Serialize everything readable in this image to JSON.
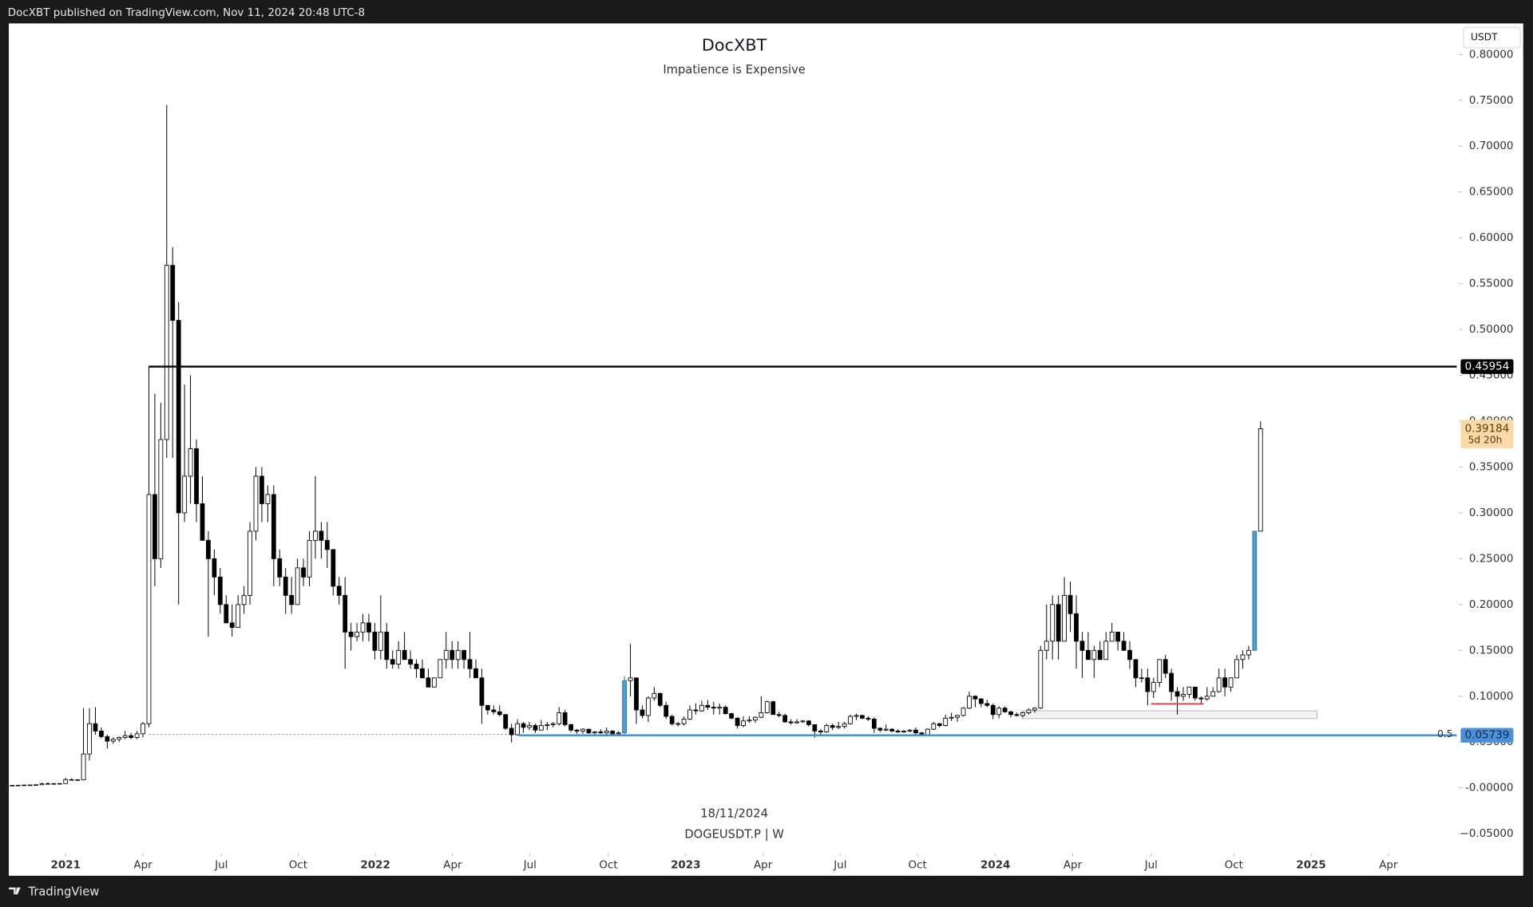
{
  "header": {
    "byline": "DocXBT published on TradingView.com, Nov 11, 2024 20:48 UTC-8"
  },
  "footer": {
    "brand": "TradingView"
  },
  "chart_data": {
    "type": "candlestick",
    "title": "DocXBT",
    "subtitle": "Impatience is Expensive",
    "currency": "USDT",
    "date_label": "18/11/2024",
    "symbol": "DOGEUSDT.P | W",
    "up_color": "#ffffff",
    "down_color": "#000000",
    "highlight": {
      "candles": [
        103,
        209
      ],
      "color": "#4b9fd5"
    },
    "grid": false,
    "ohlc": [
      [
        0.0026,
        0.0028,
        0.0025,
        0.0027
      ],
      [
        0.0027,
        0.003,
        0.0026,
        0.0029
      ],
      [
        0.0029,
        0.0032,
        0.0028,
        0.0031
      ],
      [
        0.0031,
        0.0034,
        0.003,
        0.0032
      ],
      [
        0.0032,
        0.0036,
        0.0031,
        0.0034
      ],
      [
        0.0034,
        0.0058,
        0.0033,
        0.0045
      ],
      [
        0.0045,
        0.0062,
        0.0042,
        0.0046
      ],
      [
        0.0046,
        0.0052,
        0.0042,
        0.0045
      ],
      [
        0.0045,
        0.005,
        0.0043,
        0.0047
      ],
      [
        0.0047,
        0.011,
        0.0045,
        0.009
      ],
      [
        0.009,
        0.0105,
        0.008,
        0.0088
      ],
      [
        0.0088,
        0.0095,
        0.0078,
        0.0087
      ],
      [
        0.0087,
        0.087,
        0.0085,
        0.037
      ],
      [
        0.037,
        0.087,
        0.03,
        0.07
      ],
      [
        0.07,
        0.088,
        0.058,
        0.062
      ],
      [
        0.062,
        0.066,
        0.054,
        0.056
      ],
      [
        0.056,
        0.058,
        0.043,
        0.051
      ],
      [
        0.051,
        0.055,
        0.048,
        0.053
      ],
      [
        0.053,
        0.056,
        0.05,
        0.055
      ],
      [
        0.055,
        0.062,
        0.053,
        0.057
      ],
      [
        0.057,
        0.06,
        0.053,
        0.055
      ],
      [
        0.055,
        0.062,
        0.053,
        0.059
      ],
      [
        0.059,
        0.072,
        0.055,
        0.07
      ],
      [
        0.07,
        0.46,
        0.066,
        0.32
      ],
      [
        0.32,
        0.43,
        0.22,
        0.25
      ],
      [
        0.25,
        0.42,
        0.24,
        0.38
      ],
      [
        0.38,
        0.745,
        0.36,
        0.57
      ],
      [
        0.57,
        0.59,
        0.36,
        0.51
      ],
      [
        0.51,
        0.53,
        0.2,
        0.3
      ],
      [
        0.3,
        0.44,
        0.29,
        0.34
      ],
      [
        0.34,
        0.45,
        0.31,
        0.37
      ],
      [
        0.37,
        0.38,
        0.29,
        0.31
      ],
      [
        0.31,
        0.34,
        0.27,
        0.27
      ],
      [
        0.27,
        0.28,
        0.165,
        0.25
      ],
      [
        0.25,
        0.26,
        0.21,
        0.23
      ],
      [
        0.23,
        0.24,
        0.19,
        0.2
      ],
      [
        0.2,
        0.21,
        0.18,
        0.18
      ],
      [
        0.18,
        0.2,
        0.165,
        0.175
      ],
      [
        0.175,
        0.21,
        0.175,
        0.2
      ],
      [
        0.2,
        0.22,
        0.19,
        0.21
      ],
      [
        0.21,
        0.29,
        0.2,
        0.28
      ],
      [
        0.28,
        0.35,
        0.27,
        0.34
      ],
      [
        0.34,
        0.35,
        0.29,
        0.31
      ],
      [
        0.31,
        0.33,
        0.29,
        0.32
      ],
      [
        0.32,
        0.33,
        0.22,
        0.25
      ],
      [
        0.25,
        0.26,
        0.22,
        0.23
      ],
      [
        0.23,
        0.24,
        0.19,
        0.21
      ],
      [
        0.21,
        0.23,
        0.19,
        0.2
      ],
      [
        0.2,
        0.25,
        0.2,
        0.24
      ],
      [
        0.24,
        0.25,
        0.22,
        0.23
      ],
      [
        0.23,
        0.28,
        0.22,
        0.27
      ],
      [
        0.27,
        0.34,
        0.25,
        0.28
      ],
      [
        0.28,
        0.29,
        0.25,
        0.27
      ],
      [
        0.27,
        0.29,
        0.24,
        0.26
      ],
      [
        0.26,
        0.26,
        0.21,
        0.22
      ],
      [
        0.22,
        0.23,
        0.2,
        0.21
      ],
      [
        0.21,
        0.23,
        0.13,
        0.17
      ],
      [
        0.17,
        0.18,
        0.15,
        0.165
      ],
      [
        0.165,
        0.18,
        0.16,
        0.17
      ],
      [
        0.17,
        0.19,
        0.16,
        0.18
      ],
      [
        0.18,
        0.19,
        0.16,
        0.17
      ],
      [
        0.17,
        0.18,
        0.14,
        0.15
      ],
      [
        0.15,
        0.21,
        0.14,
        0.17
      ],
      [
        0.17,
        0.18,
        0.13,
        0.14
      ],
      [
        0.14,
        0.15,
        0.13,
        0.135
      ],
      [
        0.135,
        0.16,
        0.13,
        0.15
      ],
      [
        0.15,
        0.17,
        0.14,
        0.14
      ],
      [
        0.14,
        0.15,
        0.13,
        0.135
      ],
      [
        0.135,
        0.14,
        0.12,
        0.13
      ],
      [
        0.13,
        0.14,
        0.12,
        0.12
      ],
      [
        0.12,
        0.13,
        0.11,
        0.11
      ],
      [
        0.11,
        0.12,
        0.11,
        0.12
      ],
      [
        0.12,
        0.14,
        0.12,
        0.14
      ],
      [
        0.14,
        0.17,
        0.13,
        0.15
      ],
      [
        0.15,
        0.16,
        0.13,
        0.14
      ],
      [
        0.14,
        0.16,
        0.13,
        0.15
      ],
      [
        0.15,
        0.15,
        0.13,
        0.14
      ],
      [
        0.14,
        0.17,
        0.12,
        0.13
      ],
      [
        0.13,
        0.14,
        0.12,
        0.12
      ],
      [
        0.12,
        0.13,
        0.07,
        0.09
      ],
      [
        0.09,
        0.09,
        0.08,
        0.085
      ],
      [
        0.085,
        0.09,
        0.08,
        0.083
      ],
      [
        0.083,
        0.09,
        0.078,
        0.08
      ],
      [
        0.08,
        0.08,
        0.063,
        0.065
      ],
      [
        0.065,
        0.07,
        0.0495,
        0.058
      ],
      [
        0.058,
        0.075,
        0.057,
        0.07
      ],
      [
        0.07,
        0.072,
        0.06,
        0.066
      ],
      [
        0.066,
        0.072,
        0.063,
        0.068
      ],
      [
        0.068,
        0.07,
        0.06,
        0.063
      ],
      [
        0.063,
        0.074,
        0.063,
        0.068
      ],
      [
        0.068,
        0.072,
        0.063,
        0.069
      ],
      [
        0.069,
        0.072,
        0.066,
        0.07
      ],
      [
        0.07,
        0.088,
        0.068,
        0.082
      ],
      [
        0.082,
        0.085,
        0.067,
        0.069
      ],
      [
        0.069,
        0.07,
        0.061,
        0.063
      ],
      [
        0.063,
        0.064,
        0.059,
        0.062
      ],
      [
        0.062,
        0.065,
        0.059,
        0.064
      ],
      [
        0.064,
        0.064,
        0.059,
        0.06
      ],
      [
        0.06,
        0.062,
        0.057,
        0.061
      ],
      [
        0.061,
        0.064,
        0.059,
        0.06
      ],
      [
        0.06,
        0.066,
        0.058,
        0.062
      ],
      [
        0.062,
        0.063,
        0.057,
        0.059
      ],
      [
        0.059,
        0.062,
        0.058,
        0.06
      ],
      [
        0.06,
        0.122,
        0.058,
        0.117
      ],
      [
        0.117,
        0.157,
        0.1,
        0.12
      ],
      [
        0.12,
        0.12,
        0.07,
        0.085
      ],
      [
        0.085,
        0.09,
        0.076,
        0.079
      ],
      [
        0.079,
        0.1,
        0.072,
        0.098
      ],
      [
        0.098,
        0.11,
        0.095,
        0.103
      ],
      [
        0.103,
        0.104,
        0.088,
        0.09
      ],
      [
        0.09,
        0.094,
        0.075,
        0.078
      ],
      [
        0.078,
        0.08,
        0.068,
        0.07
      ],
      [
        0.07,
        0.072,
        0.067,
        0.07
      ],
      [
        0.07,
        0.078,
        0.068,
        0.075
      ],
      [
        0.075,
        0.09,
        0.074,
        0.085
      ],
      [
        0.085,
        0.092,
        0.08,
        0.084
      ],
      [
        0.084,
        0.095,
        0.083,
        0.09
      ],
      [
        0.09,
        0.096,
        0.085,
        0.088
      ],
      [
        0.088,
        0.094,
        0.08,
        0.087
      ],
      [
        0.087,
        0.092,
        0.08,
        0.088
      ],
      [
        0.088,
        0.09,
        0.08,
        0.081
      ],
      [
        0.081,
        0.082,
        0.075,
        0.076
      ],
      [
        0.076,
        0.077,
        0.065,
        0.068
      ],
      [
        0.068,
        0.078,
        0.066,
        0.073
      ],
      [
        0.073,
        0.078,
        0.071,
        0.074
      ],
      [
        0.074,
        0.078,
        0.071,
        0.077
      ],
      [
        0.077,
        0.1,
        0.076,
        0.082
      ],
      [
        0.082,
        0.095,
        0.081,
        0.094
      ],
      [
        0.094,
        0.095,
        0.08,
        0.08
      ],
      [
        0.08,
        0.083,
        0.077,
        0.079
      ],
      [
        0.079,
        0.081,
        0.071,
        0.072
      ],
      [
        0.072,
        0.075,
        0.069,
        0.071
      ],
      [
        0.071,
        0.075,
        0.07,
        0.072
      ],
      [
        0.072,
        0.074,
        0.071,
        0.073
      ],
      [
        0.073,
        0.074,
        0.067,
        0.069
      ],
      [
        0.069,
        0.069,
        0.055,
        0.062
      ],
      [
        0.062,
        0.064,
        0.058,
        0.061
      ],
      [
        0.061,
        0.07,
        0.06,
        0.068
      ],
      [
        0.068,
        0.07,
        0.063,
        0.066
      ],
      [
        0.066,
        0.072,
        0.064,
        0.067
      ],
      [
        0.067,
        0.072,
        0.065,
        0.07
      ],
      [
        0.07,
        0.08,
        0.069,
        0.078
      ],
      [
        0.078,
        0.081,
        0.074,
        0.079
      ],
      [
        0.079,
        0.08,
        0.075,
        0.076
      ],
      [
        0.076,
        0.078,
        0.073,
        0.075
      ],
      [
        0.075,
        0.077,
        0.06,
        0.065
      ],
      [
        0.065,
        0.066,
        0.061,
        0.063
      ],
      [
        0.063,
        0.069,
        0.062,
        0.064
      ],
      [
        0.064,
        0.065,
        0.061,
        0.062
      ],
      [
        0.062,
        0.064,
        0.06,
        0.061
      ],
      [
        0.061,
        0.063,
        0.06,
        0.062
      ],
      [
        0.062,
        0.064,
        0.061,
        0.063
      ],
      [
        0.063,
        0.066,
        0.058,
        0.06
      ],
      [
        0.06,
        0.061,
        0.057,
        0.058
      ],
      [
        0.058,
        0.065,
        0.058,
        0.064
      ],
      [
        0.064,
        0.072,
        0.063,
        0.07
      ],
      [
        0.07,
        0.071,
        0.066,
        0.068
      ],
      [
        0.068,
        0.08,
        0.067,
        0.076
      ],
      [
        0.076,
        0.082,
        0.073,
        0.077
      ],
      [
        0.077,
        0.08,
        0.072,
        0.079
      ],
      [
        0.079,
        0.088,
        0.078,
        0.087
      ],
      [
        0.087,
        0.105,
        0.086,
        0.1
      ],
      [
        0.1,
        0.101,
        0.088,
        0.097
      ],
      [
        0.097,
        0.098,
        0.088,
        0.092
      ],
      [
        0.092,
        0.096,
        0.088,
        0.09
      ],
      [
        0.09,
        0.092,
        0.075,
        0.08
      ],
      [
        0.08,
        0.089,
        0.076,
        0.087
      ],
      [
        0.087,
        0.089,
        0.082,
        0.083
      ],
      [
        0.083,
        0.084,
        0.077,
        0.08
      ],
      [
        0.08,
        0.082,
        0.078,
        0.079
      ],
      [
        0.079,
        0.083,
        0.077,
        0.082
      ],
      [
        0.082,
        0.087,
        0.08,
        0.085
      ],
      [
        0.085,
        0.088,
        0.082,
        0.087
      ],
      [
        0.087,
        0.155,
        0.086,
        0.15
      ],
      [
        0.15,
        0.2,
        0.14,
        0.16
      ],
      [
        0.16,
        0.21,
        0.14,
        0.2
      ],
      [
        0.2,
        0.21,
        0.14,
        0.16
      ],
      [
        0.16,
        0.23,
        0.16,
        0.21
      ],
      [
        0.21,
        0.225,
        0.17,
        0.19
      ],
      [
        0.19,
        0.21,
        0.13,
        0.16
      ],
      [
        0.16,
        0.17,
        0.12,
        0.15
      ],
      [
        0.15,
        0.17,
        0.14,
        0.14
      ],
      [
        0.14,
        0.155,
        0.12,
        0.15
      ],
      [
        0.15,
        0.16,
        0.14,
        0.14
      ],
      [
        0.14,
        0.17,
        0.14,
        0.16
      ],
      [
        0.16,
        0.18,
        0.16,
        0.17
      ],
      [
        0.17,
        0.17,
        0.15,
        0.16
      ],
      [
        0.16,
        0.17,
        0.15,
        0.15
      ],
      [
        0.15,
        0.16,
        0.13,
        0.14
      ],
      [
        0.14,
        0.14,
        0.11,
        0.12
      ],
      [
        0.12,
        0.13,
        0.115,
        0.12
      ],
      [
        0.12,
        0.13,
        0.09,
        0.105
      ],
      [
        0.105,
        0.12,
        0.098,
        0.115
      ],
      [
        0.115,
        0.14,
        0.11,
        0.14
      ],
      [
        0.14,
        0.145,
        0.12,
        0.125
      ],
      [
        0.125,
        0.13,
        0.095,
        0.105
      ],
      [
        0.105,
        0.11,
        0.08,
        0.1
      ],
      [
        0.1,
        0.11,
        0.095,
        0.102
      ],
      [
        0.102,
        0.11,
        0.098,
        0.11
      ],
      [
        0.11,
        0.11,
        0.095,
        0.098
      ],
      [
        0.098,
        0.1,
        0.091,
        0.097
      ],
      [
        0.097,
        0.11,
        0.095,
        0.1
      ],
      [
        0.1,
        0.11,
        0.1,
        0.105
      ],
      [
        0.105,
        0.13,
        0.104,
        0.12
      ],
      [
        0.12,
        0.13,
        0.1,
        0.11
      ],
      [
        0.11,
        0.12,
        0.105,
        0.12
      ],
      [
        0.12,
        0.145,
        0.12,
        0.14
      ],
      [
        0.14,
        0.15,
        0.13,
        0.145
      ],
      [
        0.145,
        0.155,
        0.14,
        0.15
      ],
      [
        0.15,
        0.28,
        0.15,
        0.28
      ],
      [
        0.28,
        0.4,
        0.28,
        0.39184
      ]
    ],
    "xlim": [
      -0.4,
      243
    ],
    "xticks": [
      {
        "value": 9,
        "label": "2021"
      },
      {
        "value": 22,
        "label": "Apr"
      },
      {
        "value": 35.2,
        "label": "Jul"
      },
      {
        "value": 48.1,
        "label": "Oct"
      },
      {
        "value": 61.1,
        "label": "2022"
      },
      {
        "value": 74.1,
        "label": "Apr"
      },
      {
        "value": 87.1,
        "label": "Jul"
      },
      {
        "value": 100.3,
        "label": "Oct"
      },
      {
        "value": 113.3,
        "label": "2023"
      },
      {
        "value": 126.3,
        "label": "Apr"
      },
      {
        "value": 139.3,
        "label": "Jul"
      },
      {
        "value": 152.3,
        "label": "Oct"
      },
      {
        "value": 165.4,
        "label": "2024"
      },
      {
        "value": 178.4,
        "label": "Apr"
      },
      {
        "value": 191.6,
        "label": "Jul"
      },
      {
        "value": 205.5,
        "label": "Oct"
      },
      {
        "value": 218.5,
        "label": "2025"
      },
      {
        "value": 231.5,
        "label": "Apr"
      }
    ],
    "ylim": [
      -0.0671,
      0.8339
    ],
    "yticks": [
      {
        "value": -0.05,
        "label": "−0.05000"
      },
      {
        "value": 0,
        "label": "-0.00000"
      },
      {
        "value": 0.05,
        "label": "0.05000"
      },
      {
        "value": 0.1,
        "label": "0.10000"
      },
      {
        "value": 0.15,
        "label": "0.15000"
      },
      {
        "value": 0.2,
        "label": "0.20000"
      },
      {
        "value": 0.25,
        "label": "0.25000"
      },
      {
        "value": 0.3,
        "label": "0.30000"
      },
      {
        "value": 0.35,
        "label": "0.35000"
      },
      {
        "value": 0.4,
        "label": "0.40000"
      },
      {
        "value": 0.45,
        "label": "0.45000"
      },
      {
        "value": 0.5,
        "label": "0.50000"
      },
      {
        "value": 0.55,
        "label": "0.55000"
      },
      {
        "value": 0.6,
        "label": "0.60000"
      },
      {
        "value": 0.65,
        "label": "0.65000"
      },
      {
        "value": 0.7,
        "label": "0.70000"
      },
      {
        "value": 0.75,
        "label": "0.75000"
      },
      {
        "value": 0.8,
        "label": "0.80000"
      }
    ],
    "price_lines": [
      {
        "value": 0.45954,
        "from": 23,
        "color": "#000000"
      },
      {
        "value": 0.05739,
        "from": 85.2,
        "color": "#4b8fd9",
        "level_label": "0.5"
      }
    ],
    "dotted_line": {
      "value": 0.0585,
      "from": 23,
      "to": 85.2
    },
    "zone": {
      "from": 169.9,
      "to": 219.5,
      "low": 0.0756,
      "high": 0.0841
    },
    "support_segment": {
      "value": 0.0916,
      "from": 191.6,
      "to": 200.4,
      "color": "#e0474c"
    },
    "last_price": {
      "value": 0.39184,
      "countdown": "5d 20h",
      "color": "#fcd9a8"
    }
  }
}
